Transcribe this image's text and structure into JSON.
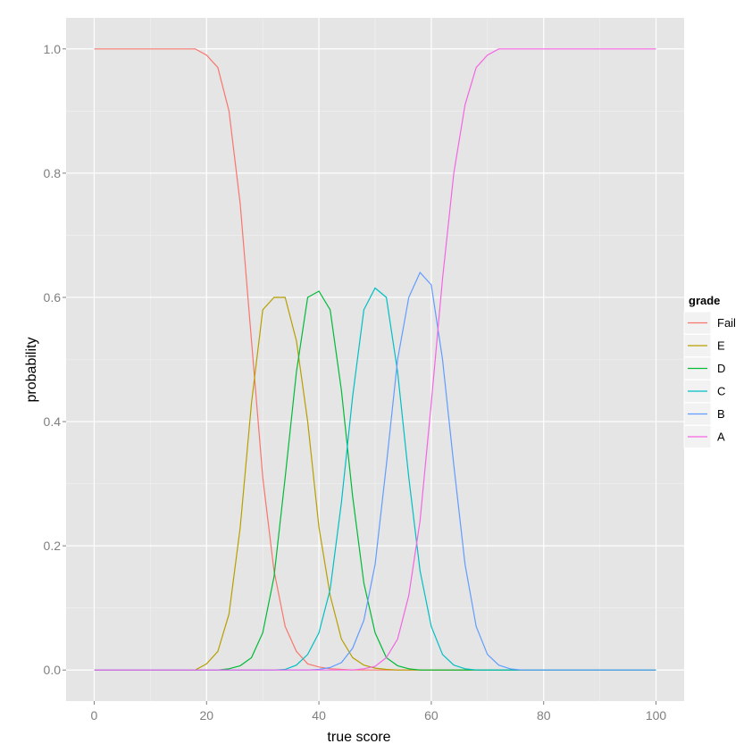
{
  "chart_data": {
    "type": "line",
    "xlabel": "true score",
    "ylabel": "probability",
    "xlim": [
      -5,
      105
    ],
    "ylim": [
      -0.05,
      1.05
    ],
    "x_ticks": [
      0,
      20,
      40,
      60,
      80,
      100
    ],
    "x_tick_labels": [
      "0",
      "20",
      "40",
      "60",
      "80",
      "100"
    ],
    "y_ticks": [
      0.0,
      0.2,
      0.4,
      0.6,
      0.8,
      1.0
    ],
    "y_tick_labels": [
      "0.0",
      "0.2",
      "0.4",
      "0.6",
      "0.8",
      "1.0"
    ],
    "grid": true,
    "background": "#e5e5e5",
    "legend": {
      "title": "grade",
      "position": "right"
    },
    "x": [
      0,
      2,
      4,
      6,
      8,
      10,
      12,
      14,
      16,
      18,
      20,
      22,
      24,
      26,
      28,
      30,
      32,
      34,
      36,
      38,
      40,
      42,
      44,
      46,
      48,
      50,
      52,
      54,
      56,
      58,
      60,
      62,
      64,
      66,
      68,
      70,
      72,
      74,
      76,
      78,
      80,
      82,
      84,
      86,
      88,
      90,
      92,
      94,
      96,
      98,
      100
    ],
    "series": [
      {
        "name": "Fail",
        "color": "#f8766d",
        "values": [
          1,
          1,
          1,
          1,
          1,
          1,
          1,
          1,
          1,
          1,
          0.99,
          0.97,
          0.9,
          0.75,
          0.53,
          0.31,
          0.16,
          0.07,
          0.03,
          0.01,
          0.005,
          0.002,
          0.001,
          0,
          0,
          0,
          0,
          0,
          0,
          0,
          0,
          0,
          0,
          0,
          0,
          0,
          0,
          0,
          0,
          0,
          0,
          0,
          0,
          0,
          0,
          0,
          0,
          0,
          0,
          0,
          0
        ]
      },
      {
        "name": "E",
        "color": "#b79f00",
        "values": [
          0,
          0,
          0,
          0,
          0,
          0,
          0,
          0,
          0,
          0,
          0.01,
          0.03,
          0.09,
          0.23,
          0.43,
          0.58,
          0.6,
          0.6,
          0.53,
          0.4,
          0.23,
          0.12,
          0.05,
          0.02,
          0.008,
          0.003,
          0.001,
          0,
          0,
          0,
          0,
          0,
          0,
          0,
          0,
          0,
          0,
          0,
          0,
          0,
          0,
          0,
          0,
          0,
          0,
          0,
          0,
          0,
          0,
          0,
          0
        ]
      },
      {
        "name": "D",
        "color": "#00ba38",
        "values": [
          0,
          0,
          0,
          0,
          0,
          0,
          0,
          0,
          0,
          0,
          0,
          0,
          0.002,
          0.007,
          0.02,
          0.06,
          0.15,
          0.31,
          0.48,
          0.6,
          0.61,
          0.58,
          0.45,
          0.28,
          0.14,
          0.06,
          0.02,
          0.007,
          0.002,
          0,
          0,
          0,
          0,
          0,
          0,
          0,
          0,
          0,
          0,
          0,
          0,
          0,
          0,
          0,
          0,
          0,
          0,
          0,
          0,
          0,
          0
        ]
      },
      {
        "name": "C",
        "color": "#00bfc4",
        "values": [
          0,
          0,
          0,
          0,
          0,
          0,
          0,
          0,
          0,
          0,
          0,
          0,
          0,
          0,
          0,
          0,
          0,
          0.001,
          0.008,
          0.025,
          0.06,
          0.13,
          0.27,
          0.44,
          0.58,
          0.615,
          0.6,
          0.48,
          0.31,
          0.16,
          0.07,
          0.025,
          0.008,
          0.002,
          0,
          0,
          0,
          0,
          0,
          0,
          0,
          0,
          0,
          0,
          0,
          0,
          0,
          0,
          0,
          0,
          0
        ]
      },
      {
        "name": "B",
        "color": "#619cff",
        "values": [
          0,
          0,
          0,
          0,
          0,
          0,
          0,
          0,
          0,
          0,
          0,
          0,
          0,
          0,
          0,
          0,
          0,
          0,
          0,
          0,
          0.001,
          0.004,
          0.012,
          0.035,
          0.08,
          0.17,
          0.33,
          0.5,
          0.6,
          0.64,
          0.62,
          0.5,
          0.33,
          0.17,
          0.07,
          0.025,
          0.008,
          0.002,
          0,
          0,
          0,
          0,
          0,
          0,
          0,
          0,
          0,
          0,
          0,
          0,
          0
        ]
      },
      {
        "name": "A",
        "color": "#f564e3",
        "values": [
          0,
          0,
          0,
          0,
          0,
          0,
          0,
          0,
          0,
          0,
          0,
          0,
          0,
          0,
          0,
          0,
          0,
          0,
          0,
          0,
          0,
          0,
          0,
          0,
          0.002,
          0.006,
          0.02,
          0.05,
          0.12,
          0.24,
          0.43,
          0.63,
          0.8,
          0.91,
          0.97,
          0.99,
          1,
          1,
          1,
          1,
          1,
          1,
          1,
          1,
          1,
          1,
          1,
          1,
          1,
          1,
          1
        ]
      }
    ]
  }
}
